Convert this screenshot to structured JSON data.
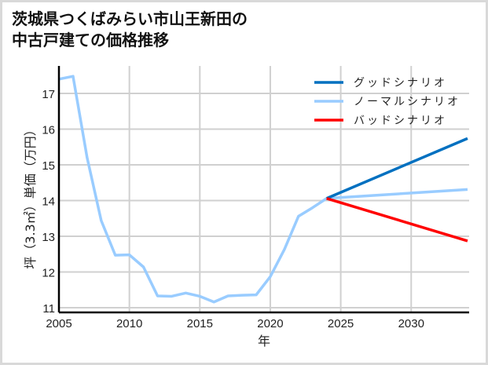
{
  "title_line1": "茨城県つくばみらい市山王新田の",
  "title_line2": "中古戸建ての価格推移",
  "chart_data": {
    "type": "line",
    "title": "茨城県つくばみらい市山王新田の中古戸建ての価格推移",
    "xlabel": "年",
    "ylabel": "坪（3.3㎡）単価（万円）",
    "xlim": [
      2005,
      2034
    ],
    "ylim": [
      10.9,
      17.8
    ],
    "xticks": [
      2005,
      2010,
      2015,
      2020,
      2025,
      2030
    ],
    "yticks": [
      11,
      12,
      13,
      14,
      15,
      16,
      17
    ],
    "grid": true,
    "legend_position": "upper right",
    "series": [
      {
        "name": "グッドシナリオ",
        "color": "#0070c0",
        "x": [
          2024,
          2034
        ],
        "values": [
          14.06,
          15.74
        ]
      },
      {
        "name": "ノーマルシナリオ",
        "color": "#99ccff",
        "x": [
          2005,
          2006,
          2007,
          2008,
          2009,
          2010,
          2011,
          2012,
          2013,
          2014,
          2015,
          2016,
          2017,
          2018,
          2019,
          2020,
          2021,
          2022,
          2023,
          2024,
          2034
        ],
        "values": [
          17.4,
          17.48,
          15.2,
          13.44,
          12.47,
          12.48,
          12.14,
          11.33,
          11.32,
          11.41,
          11.32,
          11.16,
          11.33,
          11.35,
          11.36,
          11.87,
          12.63,
          13.56,
          13.8,
          14.06,
          14.31
        ]
      },
      {
        "name": "バッドシナリオ",
        "color": "#ff0000",
        "x": [
          2024,
          2034
        ],
        "values": [
          14.06,
          12.87
        ]
      }
    ]
  },
  "legend": [
    {
      "label": "グッドシナリオ",
      "color": "#0070c0"
    },
    {
      "label": "ノーマルシナリオ",
      "color": "#99ccff"
    },
    {
      "label": "バッドシナリオ",
      "color": "#ff0000"
    }
  ],
  "axis": {
    "x_label": "年",
    "y_label": "坪（3.3㎡）単価（万円）",
    "x_ticks": [
      "2005",
      "2010",
      "2015",
      "2020",
      "2025",
      "2030"
    ],
    "y_ticks": [
      "11",
      "12",
      "13",
      "14",
      "15",
      "16",
      "17"
    ]
  }
}
